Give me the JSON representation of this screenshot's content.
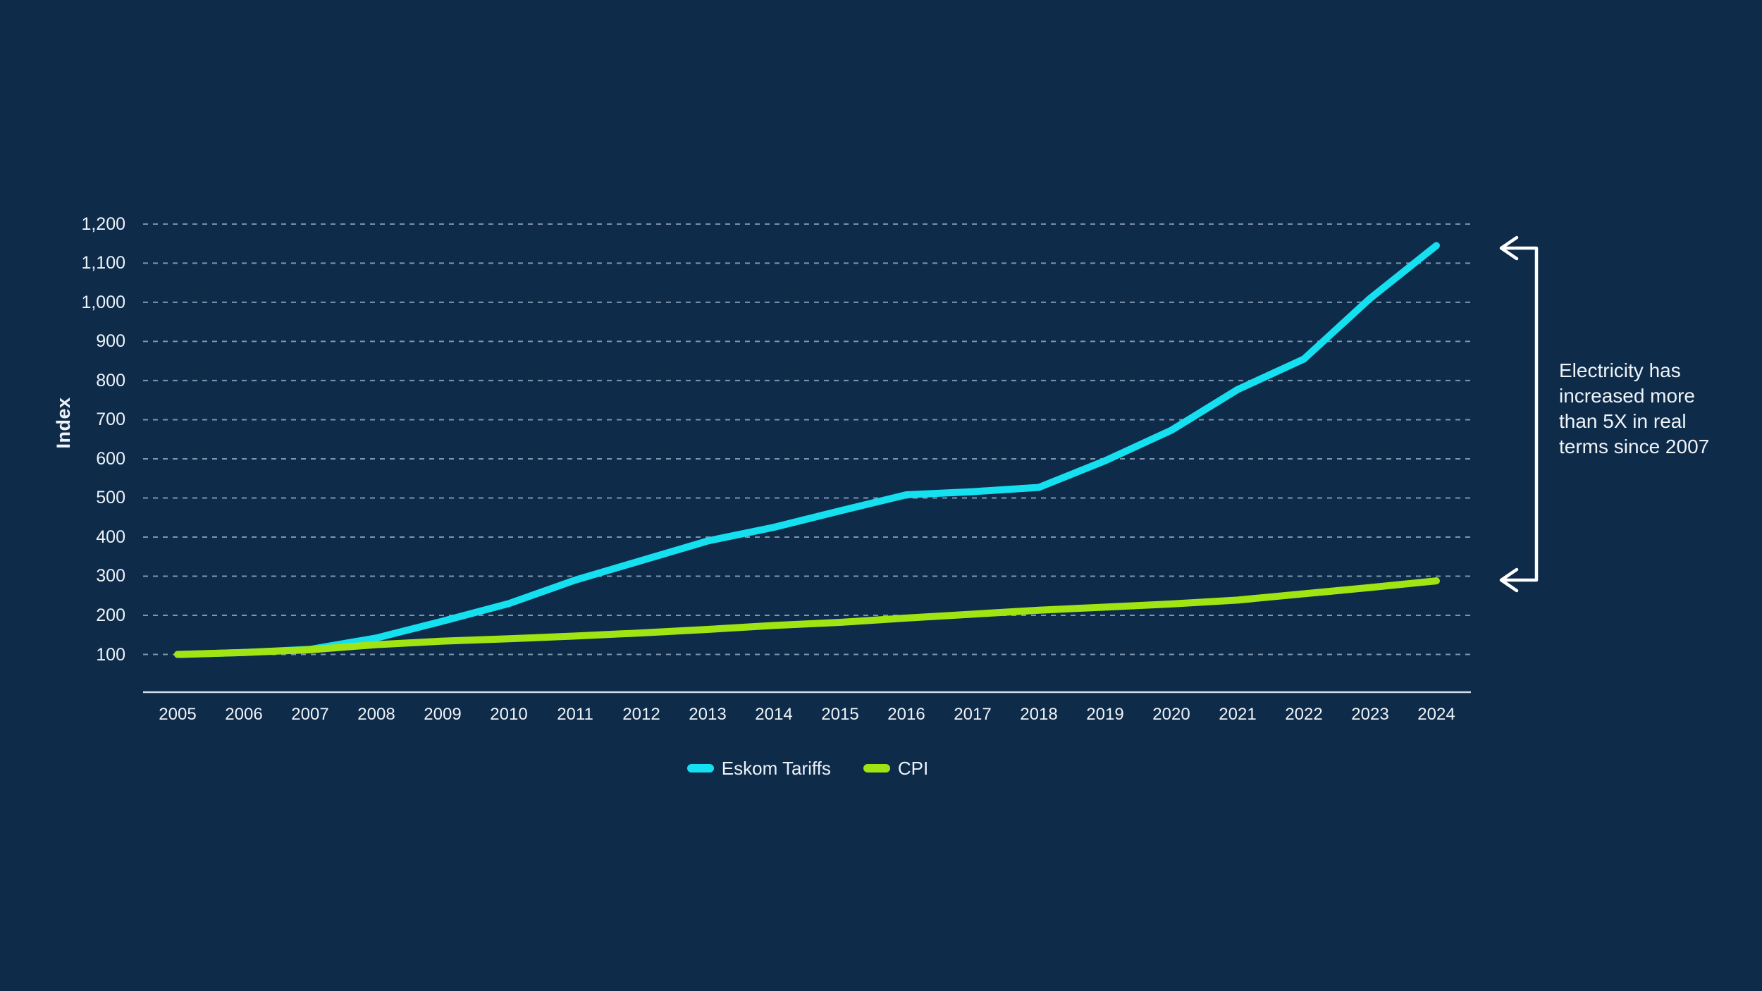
{
  "colors": {
    "background": "#0e2b4a",
    "grid": "#9db1c7",
    "axis": "#d3dde8",
    "text": "#eef3f8",
    "bracket": "#ffffff",
    "eskom": "#15e0f0",
    "cpi": "#a1e414"
  },
  "y_axis": {
    "title": "Index",
    "ticks": [
      100,
      200,
      300,
      400,
      500,
      600,
      700,
      800,
      900,
      1000,
      1100,
      1200
    ],
    "tick_labels": [
      "100",
      "200",
      "300",
      "400",
      "500",
      "600",
      "700",
      "800",
      "900",
      "1,000",
      "1,100",
      "1,200"
    ]
  },
  "chart_data": {
    "type": "line",
    "title": "",
    "xlabel": "",
    "ylabel": "Index",
    "x": [
      2005,
      2006,
      2007,
      2008,
      2009,
      2010,
      2011,
      2012,
      2013,
      2014,
      2015,
      2016,
      2017,
      2018,
      2019,
      2020,
      2021,
      2022,
      2023,
      2024
    ],
    "series": [
      {
        "name": "Eskom Tariffs",
        "color": "#15e0f0",
        "values": [
          100,
          105,
          113,
          142,
          185,
          230,
          290,
          340,
          390,
          425,
          467,
          508,
          516,
          527,
          595,
          673,
          777,
          855,
          1010,
          1145
        ]
      },
      {
        "name": "CPI",
        "color": "#a1e414",
        "values": [
          100,
          105,
          112,
          125,
          134,
          140,
          147,
          155,
          164,
          174,
          182,
          193,
          203,
          213,
          221,
          229,
          239,
          255,
          271,
          288
        ]
      }
    ],
    "ylim": [
      0,
      1250
    ],
    "grid": true,
    "legend_position": "bottom"
  },
  "annotation": {
    "text": "Electricity has increased more than 5X in real terms since 2007",
    "lines": [
      "Electricity has",
      "increased more",
      "than 5X in real",
      "terms since 2007"
    ]
  }
}
